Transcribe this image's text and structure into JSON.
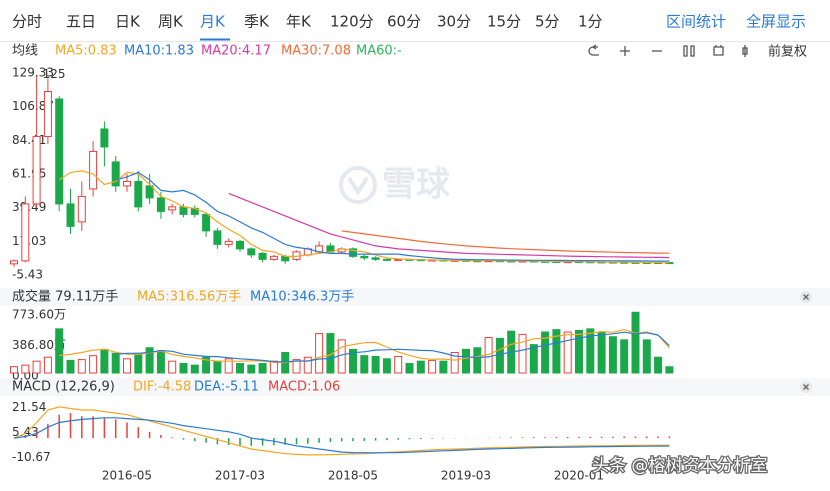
{
  "tabs": [
    "分时",
    "五日",
    "日K",
    "周K",
    "月K",
    "季K",
    "年K",
    "120分",
    "60分",
    "30分",
    "15分",
    "5分",
    "1分"
  ],
  "actions": [
    "区间统计",
    "全屏显示"
  ],
  "adjust": "前复权",
  "watermark": "雪球",
  "credit": "头条 @榕树资本分析室",
  "chart_data": [
    {
      "type": "candlestick",
      "legend_title": "均线",
      "categories": [
        null,
        null,
        null,
        null,
        null,
        null,
        null,
        null,
        null,
        null,
        "2016-05",
        null,
        null,
        null,
        null,
        null,
        null,
        null,
        null,
        null,
        "2017-03",
        null,
        null,
        null,
        null,
        null,
        null,
        null,
        null,
        null,
        "2018-05",
        null,
        null,
        null,
        null,
        null,
        null,
        null,
        null,
        null,
        "2019-03",
        null,
        null,
        null,
        null,
        null,
        null,
        null,
        null,
        null,
        "2020-01",
        null,
        null,
        null,
        null,
        null,
        null,
        null,
        null
      ],
      "open": [
        0,
        2,
        40,
        85,
        110,
        40,
        28,
        50,
        90,
        68,
        52,
        55,
        52,
        44,
        36,
        38,
        37,
        33,
        22,
        13,
        15,
        10,
        7,
        3,
        5,
        3,
        6,
        8,
        12,
        8,
        10,
        5,
        4,
        3,
        2.5,
        3,
        2.8,
        2.5,
        2.6,
        2.3,
        2.4,
        2.1,
        2,
        2.1,
        1.9,
        1.8,
        1.9,
        1.7,
        1.6,
        1.5,
        1.5,
        1.4,
        1.3,
        1.2,
        1.1,
        1.0,
        0.95,
        0.9,
        0.85
      ],
      "high": [
        3,
        45,
        125,
        123.63,
        112,
        50,
        55,
        82,
        95,
        72,
        60,
        62,
        60,
        48,
        40,
        40,
        39,
        34,
        24,
        17,
        16,
        11,
        8,
        6,
        6,
        9,
        11,
        15,
        14,
        11,
        11,
        6,
        5,
        3.5,
        3.5,
        3.2,
        3,
        3,
        2.8,
        2.8,
        2.5,
        2.4,
        2.4,
        2.2,
        2.1,
        2.2,
        2,
        1.9,
        1.8,
        1.8,
        1.7,
        1.6,
        1.5,
        1.4,
        1.3,
        1.2,
        1.1,
        1.0,
        1.1
      ],
      "low": [
        -2,
        1,
        38,
        80,
        35,
        20,
        22,
        45,
        65,
        48,
        48,
        35,
        40,
        30,
        33,
        31,
        31,
        18,
        10,
        11,
        8,
        4,
        1,
        2,
        0,
        2,
        5,
        7,
        7,
        7,
        4,
        2.5,
        2,
        2,
        2.4,
        2.2,
        2.2,
        2,
        2,
        1.9,
        1.8,
        1.8,
        1.7,
        1.6,
        1.6,
        1.5,
        1.4,
        1.3,
        1.3,
        1.2,
        1.1,
        1.0,
        0.9,
        0.85,
        0.8,
        0.75,
        0.7,
        0.65,
        0.6
      ],
      "close": [
        2,
        40,
        85,
        115,
        40,
        25,
        45,
        75,
        78,
        52,
        55,
        38,
        44,
        35,
        38,
        33,
        33,
        22,
        13,
        15,
        10,
        6,
        3,
        5,
        2,
        8,
        10,
        12,
        8,
        10,
        5,
        4,
        3,
        2.5,
        3,
        2.8,
        2.5,
        2.6,
        2.3,
        2.4,
        2.1,
        2,
        2.1,
        1.9,
        1.8,
        1.9,
        1.7,
        1.6,
        1.5,
        1.5,
        1.4,
        1.3,
        1.2,
        1.1,
        1.0,
        0.95,
        0.9,
        0.85,
        0.8
      ],
      "up_color": "#e8413c",
      "down_color": "#1aa84b",
      "ylim": [
        -5.43,
        129.33
      ],
      "yticks": [
        129.33,
        106.87,
        84.41,
        61.95,
        39.49,
        17.03,
        -5.43
      ],
      "series": [
        {
          "name": "MA5:0.83",
          "color": "#f5a623",
          "values": [
            null,
            null,
            null,
            null,
            56,
            61,
            62,
            60,
            53,
            55,
            61,
            60,
            53,
            45,
            42,
            38,
            37,
            34,
            28,
            23,
            19,
            13,
            9,
            8,
            5,
            5,
            6,
            7,
            8,
            10,
            9,
            8,
            6,
            4,
            3.4,
            3,
            2.8,
            2.6,
            2.5,
            2.4,
            2.3,
            2.2,
            2.1,
            2,
            1.95,
            1.9,
            1.8,
            1.7,
            1.65,
            1.55,
            1.5,
            1.4,
            1.3,
            1.2,
            1.1,
            1.05,
            0.98,
            0.9,
            0.83
          ]
        },
        {
          "name": "MA10:1.83",
          "color": "#2b7bd6",
          "values": [
            null,
            null,
            null,
            null,
            null,
            null,
            null,
            null,
            null,
            56,
            58,
            61,
            56,
            49,
            48,
            49,
            46,
            41,
            35,
            32,
            28,
            24,
            21,
            17,
            13,
            11,
            10,
            8,
            7,
            7,
            6.5,
            6.5,
            6.5,
            6.5,
            6.5,
            5.5,
            4.8,
            4,
            3.5,
            3.1,
            2.9,
            2.8,
            2.7,
            2.6,
            2.5,
            2.45,
            2.4,
            2.35,
            2.3,
            2.25,
            2.2,
            2.15,
            2.1,
            2.05,
            2,
            1.95,
            1.9,
            1.87,
            1.83
          ]
        },
        {
          "name": "MA20:4.17",
          "color": "#d63aa8",
          "values": [
            null,
            null,
            null,
            null,
            null,
            null,
            null,
            null,
            null,
            null,
            null,
            null,
            null,
            null,
            null,
            null,
            null,
            null,
            null,
            47,
            44,
            41,
            38,
            35,
            32,
            29,
            26,
            23,
            20,
            18,
            16,
            14,
            12,
            11,
            10,
            9.5,
            9,
            8.5,
            8,
            7.5,
            7,
            6.8,
            6.6,
            6.4,
            6.2,
            6,
            5.8,
            5.6,
            5.4,
            5.2,
            5,
            4.9,
            4.8,
            4.7,
            4.6,
            4.5,
            4.4,
            4.3,
            4.17
          ]
        },
        {
          "name": "MA30:7.08",
          "color": "#f26b3a",
          "values": [
            null,
            null,
            null,
            null,
            null,
            null,
            null,
            null,
            null,
            null,
            null,
            null,
            null,
            null,
            null,
            null,
            null,
            null,
            null,
            null,
            null,
            null,
            null,
            null,
            null,
            null,
            null,
            null,
            null,
            22,
            21,
            20,
            19,
            18,
            17,
            16,
            15,
            14.2,
            13.4,
            12.7,
            12,
            11.5,
            11,
            10.5,
            10.1,
            9.8,
            9.5,
            9.2,
            8.9,
            8.6,
            8.4,
            8.2,
            8,
            7.8,
            7.6,
            7.45,
            7.3,
            7.2,
            7.08
          ]
        },
        {
          "name": "MA60:-",
          "color": "#2fb45a"
        }
      ]
    },
    {
      "type": "bar",
      "title": "成交量 79.11万手",
      "values": [
        80,
        100,
        150,
        200,
        560,
        160,
        170,
        220,
        300,
        250,
        180,
        250,
        320,
        280,
        150,
        120,
        100,
        200,
        150,
        180,
        120,
        100,
        120,
        150,
        260,
        170,
        200,
        500,
        500,
        420,
        300,
        220,
        210,
        180,
        210,
        120,
        150,
        160,
        150,
        260,
        300,
        320,
        450,
        440,
        530,
        490,
        360,
        520,
        550,
        520,
        540,
        560,
        520,
        460,
        420,
        770,
        420,
        200,
        79.11
      ],
      "ylim": [
        0,
        773.6
      ],
      "yticks": [
        {
          "value": 773.6,
          "label": "773.60万"
        },
        {
          "value": 386.8,
          "label": "386.80万"
        },
        {
          "value": 0,
          "label": "0.00"
        }
      ],
      "series": [
        {
          "name": "MA5:316.56万手",
          "color": "#f5a623",
          "values": [
            null,
            null,
            null,
            null,
            222,
            236,
            260,
            290,
            300,
            264,
            240,
            236,
            256,
            276,
            236,
            210,
            192,
            166,
            150,
            150,
            150,
            154,
            152,
            136,
            130,
            154,
            150,
            200,
            230,
            330,
            360,
            384,
            388,
            330,
            268,
            224,
            186,
            174,
            178,
            164,
            188,
            208,
            234,
            298,
            364,
            392,
            434,
            442,
            468,
            484,
            490,
            502,
            526,
            516,
            550,
            504,
            520,
            480,
            316.56
          ]
        },
        {
          "name": "MA10:346.3万手",
          "color": "#2b7bd6",
          "values": [
            null,
            null,
            null,
            null,
            null,
            null,
            null,
            null,
            null,
            236,
            250,
            250,
            263,
            285,
            275,
            238,
            223,
            211,
            208,
            193,
            180,
            171,
            160,
            143,
            140,
            152,
            152,
            177,
            183,
            230,
            257,
            269,
            290,
            294,
            300,
            294,
            286,
            284,
            254,
            216,
            206,
            197,
            204,
            238,
            264,
            290,
            321,
            354,
            381,
            414,
            441,
            468,
            484,
            497,
            517,
            497,
            510,
            481,
            346.3
          ]
        }
      ]
    },
    {
      "type": "macd",
      "title": "MACD (12,26,9)",
      "ylim": [
        -16,
        27
      ],
      "yticks": [
        21.54,
        5.43,
        -10.67
      ],
      "up_color": "#e8413c",
      "down_color": "#1aa84b",
      "histogram": {
        "name": "MACD:1.06",
        "color": "#e8413c",
        "values": [
          0,
          2,
          5,
          9,
          15,
          16,
          14,
          14,
          13,
          12,
          10,
          7,
          4,
          2,
          0.5,
          -1,
          -2,
          -3,
          -4,
          -4.5,
          -5,
          -5,
          -4.8,
          -4.6,
          -4.3,
          -4,
          -3.6,
          -3,
          -2.5,
          -2.2,
          -2,
          -1.8,
          -1.6,
          -1.3,
          -1,
          -0.8,
          -0.6,
          -0.4,
          -0.3,
          -0.2,
          -0.1,
          0.1,
          0.2,
          0.3,
          0.4,
          0.5,
          0.6,
          0.6,
          0.7,
          0.7,
          0.8,
          0.8,
          0.9,
          0.9,
          1,
          1,
          1,
          1.05,
          1.06
        ]
      },
      "series": [
        {
          "name": "DIF:-4.58",
          "color": "#f5a623",
          "values": [
            0,
            3,
            10,
            18,
            20,
            19,
            18,
            18,
            17,
            16,
            15,
            13,
            11,
            9,
            7,
            5,
            3,
            1,
            -1,
            -3,
            -5,
            -7,
            -8,
            -9,
            -10,
            -10.5,
            -10.8,
            -10.8,
            -10.6,
            -10.4,
            -10.2,
            -10,
            -9.6,
            -9.2,
            -8.8,
            -8.4,
            -8,
            -7.6,
            -7.3,
            -7,
            -6.8,
            -6.5,
            -6.3,
            -6.1,
            -5.9,
            -5.7,
            -5.5,
            -5.4,
            -5.3,
            -5.2,
            -5.1,
            -5,
            -4.95,
            -4.9,
            -4.8,
            -4.7,
            -4.65,
            -4.6,
            -4.58
          ]
        },
        {
          "name": "DEA:-5.11",
          "color": "#2b7bd6",
          "values": [
            0,
            1,
            3,
            7,
            10,
            11,
            12,
            12.5,
            13,
            13,
            12.5,
            12,
            11.5,
            10.5,
            9.5,
            8,
            7,
            6,
            5,
            4,
            2.5,
            0,
            -1,
            -2,
            -3.5,
            -5,
            -6,
            -7,
            -8,
            -9,
            -9.3,
            -9.4,
            -9.5,
            -9.4,
            -9.3,
            -9.1,
            -8.8,
            -8.5,
            -8.2,
            -7.9,
            -7.6,
            -7.3,
            -7,
            -6.8,
            -6.6,
            -6.4,
            -6.2,
            -6.0,
            -5.9,
            -5.8,
            -5.7,
            -5.6,
            -5.5,
            -5.4,
            -5.35,
            -5.3,
            -5.2,
            -5.15,
            -5.11
          ]
        }
      ]
    }
  ]
}
